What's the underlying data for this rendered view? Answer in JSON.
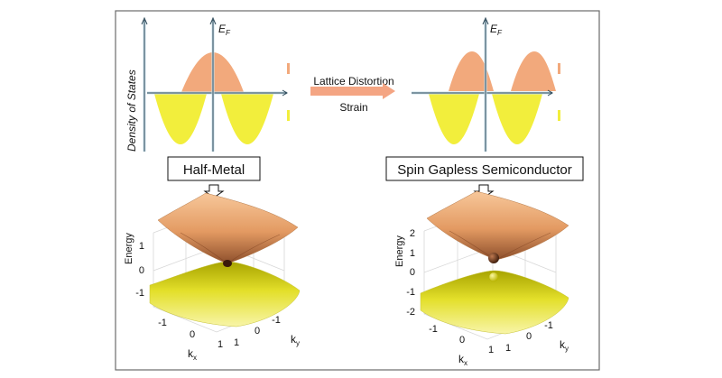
{
  "colors": {
    "frame": "#6b6b6b",
    "axis_light": "#c9dfe8",
    "axis_dark": "#2f4a5a",
    "spin_up": "#f2a97c",
    "spin_down": "#f2ee3c",
    "arrow": "#f4a583",
    "cone_top_light": "#f7c79a",
    "cone_top_dark": "#9a5a34",
    "cone_bottom_light": "#f6f29a",
    "cone_bottom_dark": "#a8a400",
    "box_grid": "#d8d8d8"
  },
  "dos": {
    "ylabel": "Density of States",
    "fermi_label": "E",
    "fermi_sub": "F"
  },
  "transition": {
    "top_label": "Lattice Distortion",
    "bottom_label": "Strain"
  },
  "states": {
    "left": "Half-Metal",
    "right": "Spin Gapless Semiconductor"
  },
  "plots": {
    "left": {
      "zlabel": "Energy",
      "zticks": [
        "1",
        "0",
        "-1"
      ],
      "xlabel": "k",
      "xlabel_sub": "x",
      "xticks": [
        "-1",
        "0",
        "1"
      ],
      "ylabel": "k",
      "ylabel_sub": "y",
      "yticks": [
        "1",
        "0",
        "-1"
      ]
    },
    "right": {
      "zlabel": "Energy",
      "zticks": [
        "2",
        "1",
        "0",
        "-1",
        "-2"
      ],
      "xlabel": "k",
      "xlabel_sub": "x",
      "xticks": [
        "-1",
        "0",
        "1"
      ],
      "ylabel": "k",
      "ylabel_sub": "y",
      "yticks": [
        "1",
        "0",
        "-1"
      ]
    }
  }
}
